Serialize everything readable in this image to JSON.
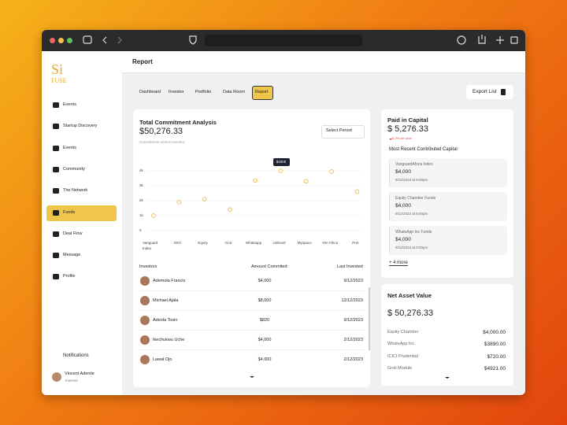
{
  "sidebar": {
    "logo": {
      "top": "Si",
      "bottom": "FUSE"
    },
    "nav": [
      "Events",
      "Startup Discovery",
      "Events",
      "Community",
      "The Network",
      "Funds",
      "Deal Flow",
      "Message",
      "Profile"
    ],
    "notifications": "Notifications",
    "user": "Vincent Adeniie",
    "role": "Investor"
  },
  "header": {
    "title": "Report"
  },
  "tabs": [
    "Dashboard",
    "Investor",
    "Portfolio",
    "Data Room",
    "Report"
  ],
  "export": "Export List",
  "commitment": {
    "title": "Total Commitment Analysis",
    "amount": "$50,276.33",
    "subtitle": "Commitment versus Investor",
    "period": "Select Period",
    "chart": {
      "type": "dot",
      "categories": [
        "Vanguard Index",
        "IOIO",
        "Equity",
        "Grot",
        "Whatsapp",
        "Unilevel",
        "Myspace",
        "Yen Africa",
        "Pret"
      ],
      "values": [
        1000,
        1900,
        2100,
        1400,
        3350,
        4000,
        3300,
        3950,
        2600
      ],
      "value_labels": [
        null,
        null,
        null,
        null,
        null,
        "$4000",
        null,
        null,
        null
      ],
      "color": "#f0b94a",
      "ylim": [
        0,
        4000
      ],
      "yticks": [
        {
          "value": 0,
          "label": "0"
        },
        {
          "value": 1000,
          "label": "1k"
        },
        {
          "value": 2000,
          "label": "2k"
        },
        {
          "value": 3000,
          "label": "3k"
        },
        {
          "value": 4000,
          "label": "4k"
        }
      ],
      "grid": true
    },
    "table": {
      "headers": [
        "Investors",
        "Amount Commited",
        "Last Invested"
      ],
      "rows": [
        [
          "Ademola Francis",
          "$4,000",
          "9/12/2023"
        ],
        [
          "Michael Ajala",
          "$8,000",
          "12/12/2023"
        ],
        [
          "Adeola Tosin",
          "$820",
          "9/12/2023"
        ],
        [
          "Ikechukwu Uche",
          "$4,000",
          "2/12/2023"
        ],
        [
          "Lawal Ojo",
          "$4,000",
          "2/12/2023"
        ]
      ]
    }
  },
  "capital": {
    "title": "Paid in Capital",
    "amount": "$ 5,276.33",
    "change": "5.2% per year",
    "recent_title": "Most Recent Contributed Capital",
    "items": [
      {
        "name": "VanguardAfrica Index",
        "amount": "$4,000",
        "date": "9/12/2023 at 8:00pm"
      },
      {
        "name": "Equity Chamber Funds",
        "amount": "$4,000",
        "date": "9/12/2023 at 8:00pm"
      },
      {
        "name": "WhatsApp Inc Funds",
        "amount": "$4,000",
        "date": "9/12/2023 at 8:00pm"
      }
    ],
    "more": "+ 4 more"
  },
  "net_asset": {
    "title": "Net Asset Value",
    "amount": "$ 50,276.33",
    "rows": [
      [
        "Equity Chamber",
        "$4,000.00"
      ],
      [
        "WhatsApp Inc.",
        "$3890.00"
      ],
      [
        "ICICI Prudential",
        "$720.00"
      ],
      [
        "Groli Module",
        "$4921.00"
      ]
    ]
  }
}
